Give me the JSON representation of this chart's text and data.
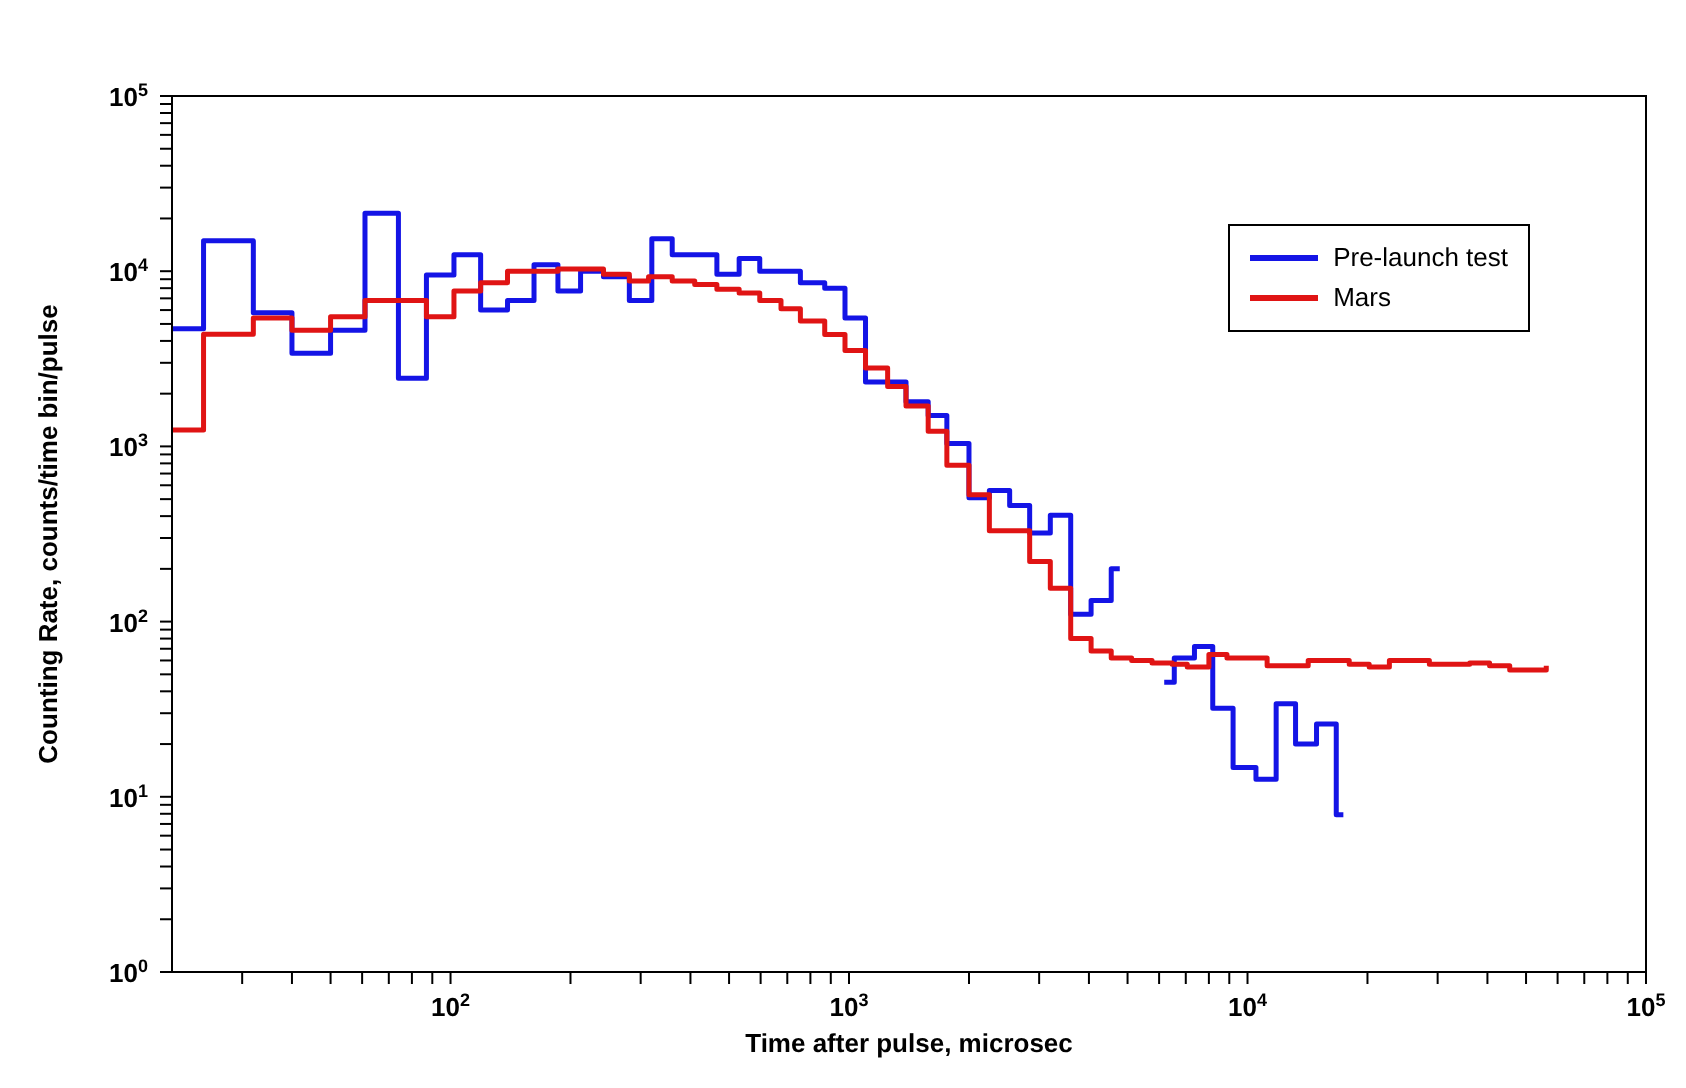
{
  "chart_data": {
    "type": "step",
    "xlabel": "Time after pulse, microsec",
    "ylabel": "Counting Rate, counts/time bin/pulse",
    "log": "xy",
    "legend": "top right",
    "xlim": [
      20,
      100000
    ],
    "ylim": [
      1,
      100000
    ],
    "xticks": [
      {
        "value": 30,
        "label": null
      },
      {
        "value": 40,
        "label": null
      },
      {
        "value": 50,
        "label": null
      },
      {
        "value": 60,
        "label": null
      },
      {
        "value": 70,
        "label": null
      },
      {
        "value": 80,
        "label": null
      },
      {
        "value": 90,
        "label": null
      },
      {
        "value": 100,
        "label": "10$^{2}$"
      },
      {
        "value": 200,
        "label": null
      },
      {
        "value": 300,
        "label": null
      },
      {
        "value": 400,
        "label": null
      },
      {
        "value": 500,
        "label": null
      },
      {
        "value": 600,
        "label": null
      },
      {
        "value": 700,
        "label": null
      },
      {
        "value": 800,
        "label": null
      },
      {
        "value": 900,
        "label": null
      },
      {
        "value": 1000,
        "label": "10$^{3}$"
      },
      {
        "value": 2000,
        "label": null
      },
      {
        "value": 3000,
        "label": null
      },
      {
        "value": 4000,
        "label": null
      },
      {
        "value": 5000,
        "label": null
      },
      {
        "value": 6000,
        "label": null
      },
      {
        "value": 7000,
        "label": null
      },
      {
        "value": 8000,
        "label": null
      },
      {
        "value": 9000,
        "label": null
      },
      {
        "value": 10000,
        "label": "10$^{4}$"
      },
      {
        "value": 20000,
        "label": null
      },
      {
        "value": 30000,
        "label": null
      },
      {
        "value": 40000,
        "label": null
      },
      {
        "value": 50000,
        "label": null
      },
      {
        "value": 60000,
        "label": null
      },
      {
        "value": 70000,
        "label": null
      },
      {
        "value": 80000,
        "label": null
      },
      {
        "value": 90000,
        "label": null
      },
      {
        "value": 100000,
        "label": "10$^{5}$"
      }
    ],
    "yticks": [
      {
        "value": 1,
        "label": "10$^{0}$"
      },
      {
        "value": 2,
        "label": null
      },
      {
        "value": 3,
        "label": null
      },
      {
        "value": 4,
        "label": null
      },
      {
        "value": 5,
        "label": null
      },
      {
        "value": 6,
        "label": null
      },
      {
        "value": 7,
        "label": null
      },
      {
        "value": 8,
        "label": null
      },
      {
        "value": 9,
        "label": null
      },
      {
        "value": 10,
        "label": "10$^{1}$"
      },
      {
        "value": 20,
        "label": null
      },
      {
        "value": 30,
        "label": null
      },
      {
        "value": 40,
        "label": null
      },
      {
        "value": 50,
        "label": null
      },
      {
        "value": 60,
        "label": null
      },
      {
        "value": 70,
        "label": null
      },
      {
        "value": 80,
        "label": null
      },
      {
        "value": 90,
        "label": null
      },
      {
        "value": 100,
        "label": "10$^{2}$"
      },
      {
        "value": 200,
        "label": null
      },
      {
        "value": 300,
        "label": null
      },
      {
        "value": 400,
        "label": null
      },
      {
        "value": 500,
        "label": null
      },
      {
        "value": 600,
        "label": null
      },
      {
        "value": 700,
        "label": null
      },
      {
        "value": 800,
        "label": null
      },
      {
        "value": 900,
        "label": null
      },
      {
        "value": 1000,
        "label": "10$^{3}$"
      },
      {
        "value": 2000,
        "label": null
      },
      {
        "value": 3000,
        "label": null
      },
      {
        "value": 4000,
        "label": null
      },
      {
        "value": 5000,
        "label": null
      },
      {
        "value": 6000,
        "label": null
      },
      {
        "value": 7000,
        "label": null
      },
      {
        "value": 8000,
        "label": null
      },
      {
        "value": 9000,
        "label": null
      },
      {
        "value": 10000,
        "label": "10$^{4}$"
      },
      {
        "value": 20000,
        "label": null
      },
      {
        "value": 30000,
        "label": null
      },
      {
        "value": 40000,
        "label": null
      },
      {
        "value": 50000,
        "label": null
      },
      {
        "value": 60000,
        "label": null
      },
      {
        "value": 70000,
        "label": null
      },
      {
        "value": 80000,
        "label": null
      },
      {
        "value": 90000,
        "label": null
      },
      {
        "value": 100000,
        "label": "10$^{5}$"
      }
    ],
    "series": [
      {
        "name": "Pre-launch test",
        "color": "#1414e6",
        "x": [
          20,
          24,
          32,
          40,
          50,
          61,
          74,
          87,
          102,
          119,
          139,
          162,
          186,
          212,
          242,
          281,
          320,
          360,
          466,
          530,
          597,
          755,
          869,
          977,
          1100,
          1390,
          1580,
          1760,
          2000,
          2250,
          2530,
          2840,
          3200,
          3600,
          4050,
          4550,
          4780,
          5400,
          6180,
          6550,
          7360,
          8180,
          9200,
          10500,
          11800,
          13200,
          14900,
          16700,
          17400
        ],
        "values": [
          4700,
          14900,
          5800,
          3400,
          4600,
          21400,
          2450,
          9500,
          12400,
          6000,
          6800,
          10900,
          7700,
          10000,
          9300,
          6800,
          15300,
          12400,
          9600,
          11800,
          10000,
          8600,
          8000,
          5400,
          2330,
          1800,
          1500,
          1040,
          510,
          560,
          460,
          320,
          405,
          110,
          132,
          200,
          200,
          null,
          45,
          62,
          72,
          32,
          14.7,
          12.6,
          34,
          20,
          26,
          7.9,
          7.9
        ]
      },
      {
        "name": "Mars",
        "color": "#e01414",
        "x": [
          20,
          24,
          32,
          40,
          50,
          61,
          87,
          102,
          119,
          139,
          186,
          242,
          281,
          314,
          360,
          410,
          466,
          530,
          597,
          675,
          755,
          869,
          977,
          1100,
          1250,
          1390,
          1580,
          1760,
          2000,
          2250,
          2840,
          3200,
          3600,
          4050,
          4550,
          5120,
          5760,
          6470,
          7060,
          8000,
          8880,
          11200,
          12600,
          14200,
          18000,
          20200,
          22700,
          28600,
          36100,
          40500,
          45500,
          56200
        ],
        "values": [
          1240,
          4370,
          5400,
          4600,
          5500,
          6800,
          5500,
          7700,
          8600,
          10000,
          10300,
          9600,
          8800,
          9300,
          8800,
          8400,
          7900,
          7500,
          6800,
          6100,
          5200,
          4350,
          3530,
          2800,
          2200,
          1700,
          1220,
          780,
          530,
          330,
          220,
          155,
          80,
          68,
          62,
          60,
          58,
          57,
          55,
          65,
          62,
          56,
          56,
          60,
          57,
          55,
          60,
          57,
          58,
          56,
          53,
          56
        ]
      }
    ]
  }
}
